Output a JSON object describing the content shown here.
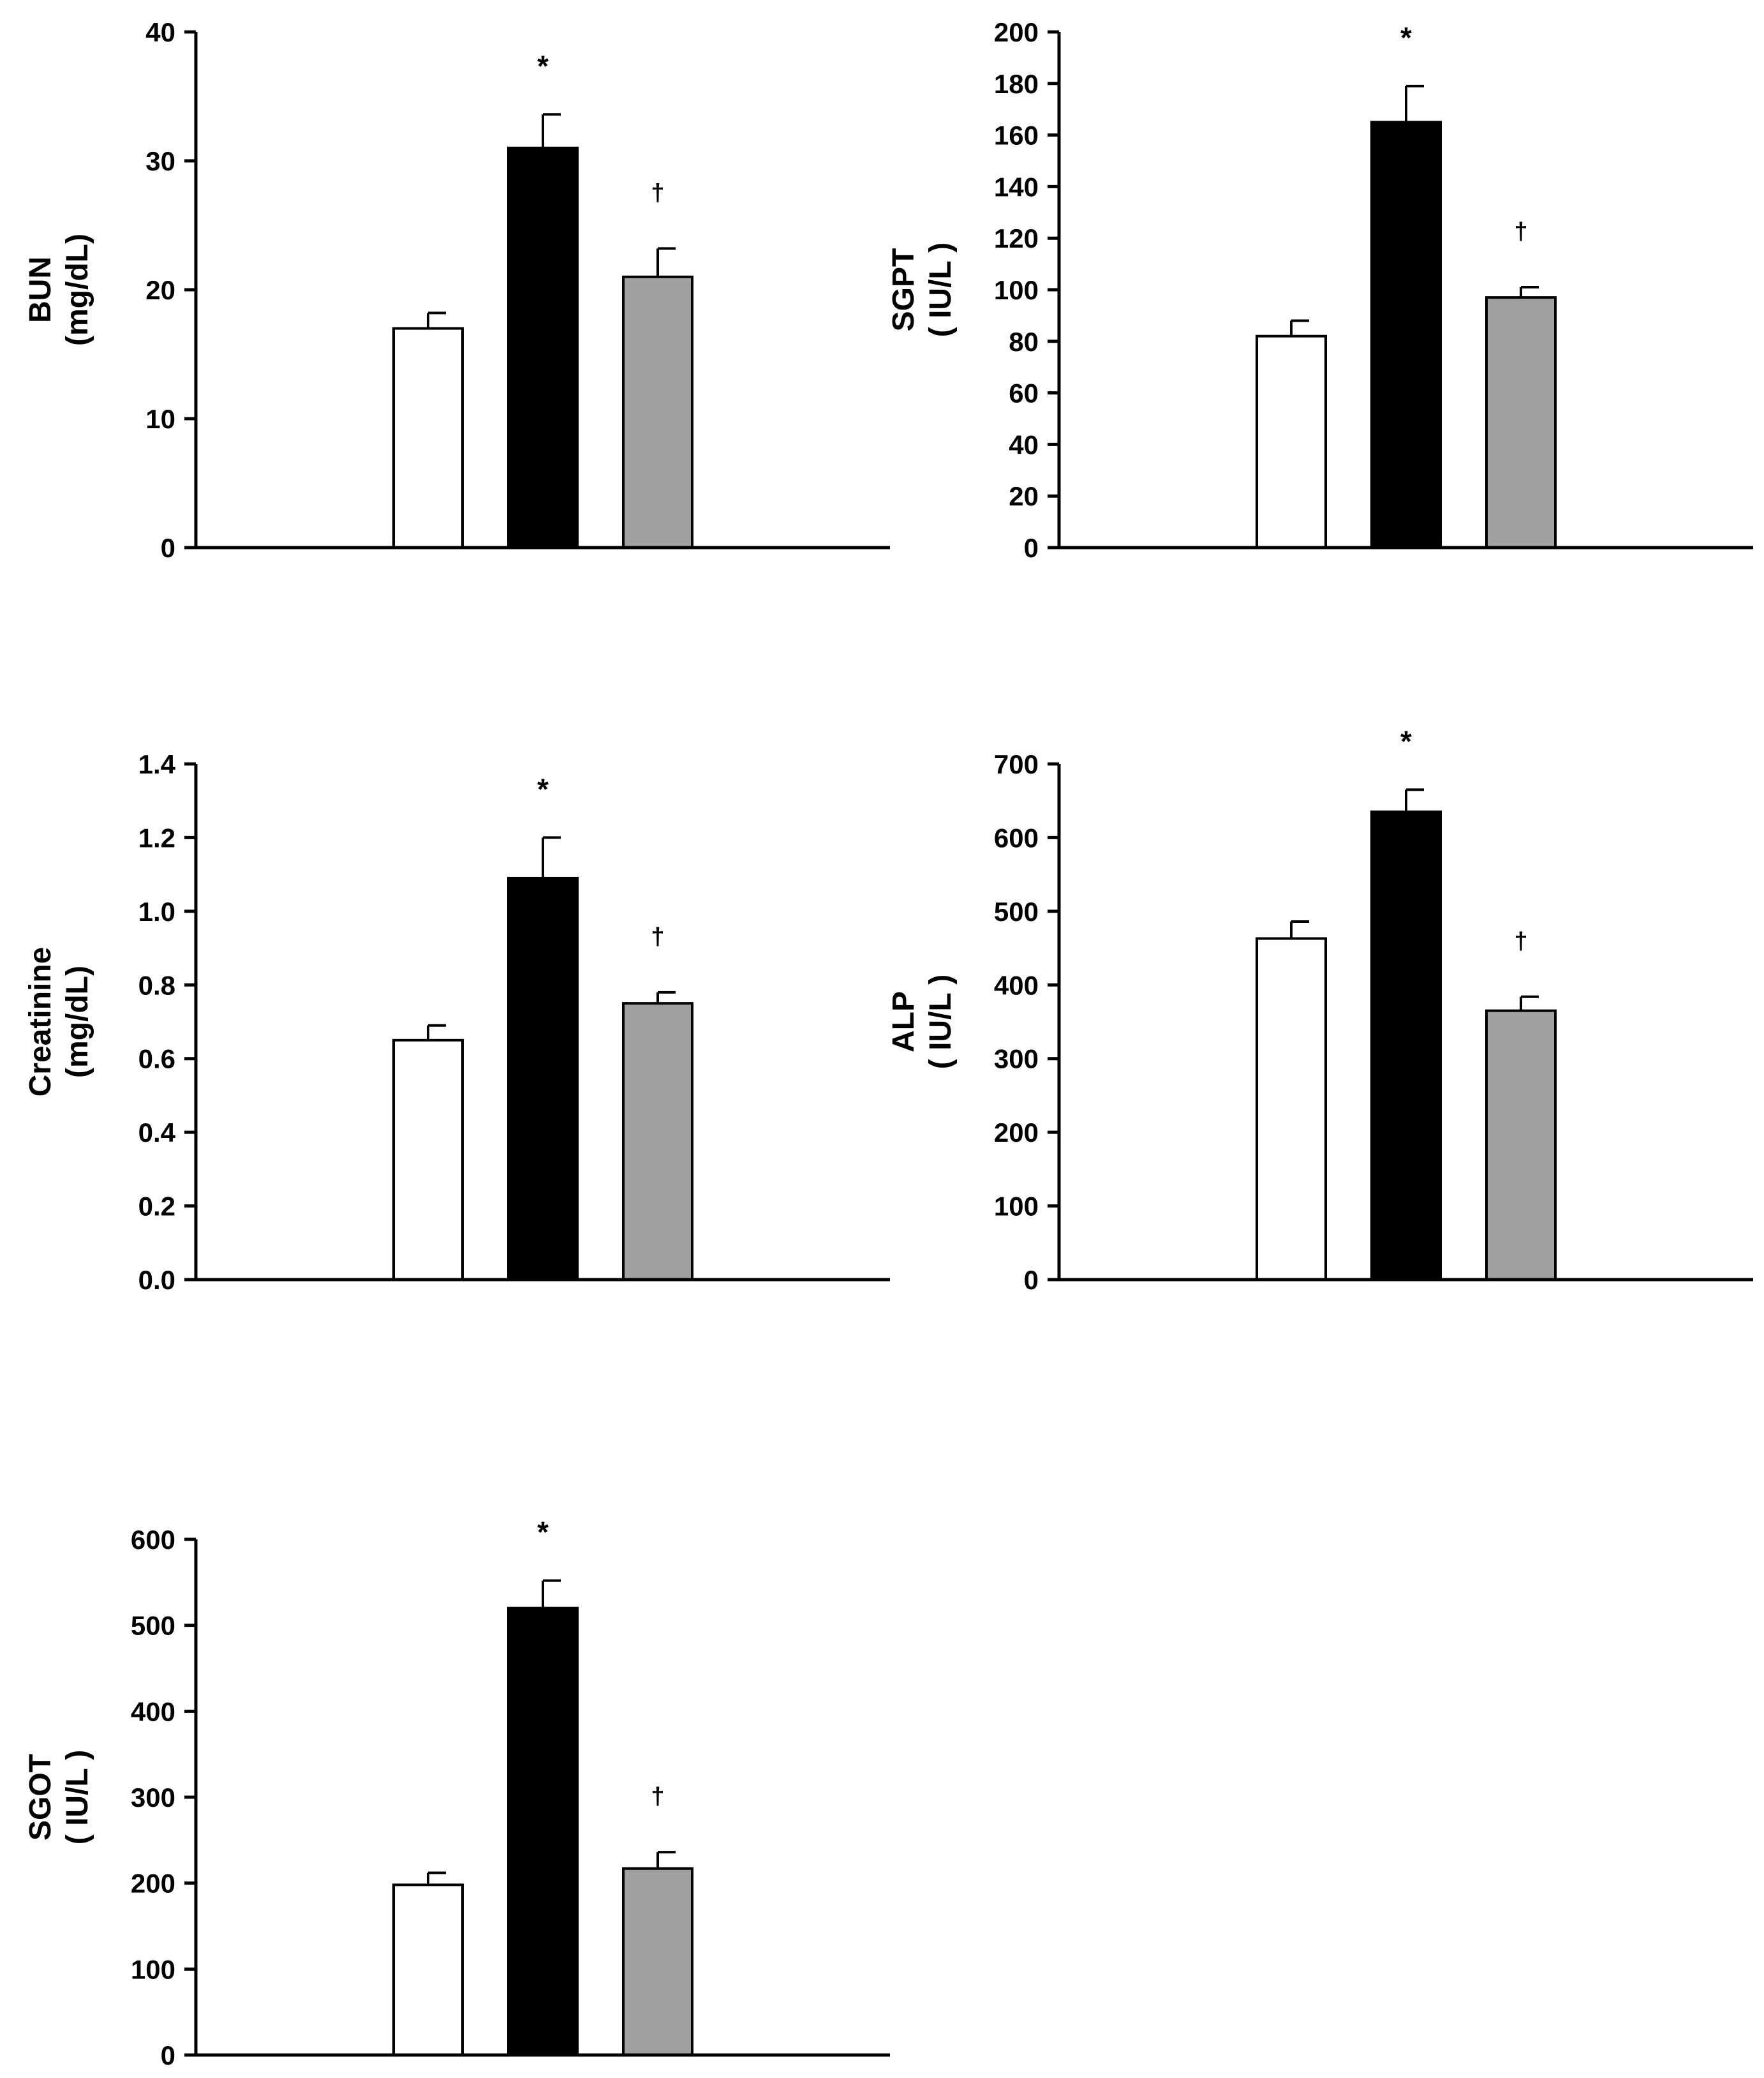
{
  "chart_data": [
    {
      "id": "bun",
      "type": "bar",
      "ylabel": "BUN",
      "ylabel_unit": "(mg/dL)",
      "ylim": [
        0,
        40
      ],
      "yticks": [
        0,
        10,
        20,
        30,
        40
      ],
      "ytick_labels": [
        "0",
        "10",
        "20",
        "30",
        "40"
      ],
      "bars": [
        {
          "value": 17,
          "error": 1.2,
          "color": "#ffffff",
          "annotation": ""
        },
        {
          "value": 31,
          "error": 2.6,
          "color": "#000000",
          "annotation": "*"
        },
        {
          "value": 21,
          "error": 2.2,
          "color": "#a0a0a0",
          "annotation": "†"
        }
      ]
    },
    {
      "id": "sgpt",
      "type": "bar",
      "ylabel": "SGPT",
      "ylabel_unit": "( IU/L )",
      "ylim": [
        0,
        200
      ],
      "yticks": [
        0,
        20,
        40,
        60,
        80,
        100,
        120,
        140,
        160,
        180,
        200
      ],
      "ytick_labels": [
        "0",
        "20",
        "40",
        "60",
        "80",
        "100",
        "120",
        "140",
        "160",
        "180",
        "200"
      ],
      "bars": [
        {
          "value": 82,
          "error": 6,
          "color": "#ffffff",
          "annotation": ""
        },
        {
          "value": 165,
          "error": 14,
          "color": "#000000",
          "annotation": "*"
        },
        {
          "value": 97,
          "error": 4,
          "color": "#a0a0a0",
          "annotation": "†"
        }
      ]
    },
    {
      "id": "creatinine",
      "type": "bar",
      "ylabel": "Creatinine",
      "ylabel_unit": "(mg/dL)",
      "ylim": [
        0,
        1.4
      ],
      "yticks": [
        0,
        0.2,
        0.4,
        0.6,
        0.8,
        1.0,
        1.2,
        1.4
      ],
      "ytick_labels": [
        "0.0",
        "0.2",
        "0.4",
        "0.6",
        "0.8",
        "1.0",
        "1.2",
        "1.4"
      ],
      "bars": [
        {
          "value": 0.65,
          "error": 0.04,
          "color": "#ffffff",
          "annotation": ""
        },
        {
          "value": 1.09,
          "error": 0.11,
          "color": "#000000",
          "annotation": "*"
        },
        {
          "value": 0.75,
          "error": 0.03,
          "color": "#a0a0a0",
          "annotation": "†"
        }
      ]
    },
    {
      "id": "alp",
      "type": "bar",
      "ylabel": "ALP",
      "ylabel_unit": "( IU/L )",
      "ylim": [
        0,
        700
      ],
      "yticks": [
        0,
        100,
        200,
        300,
        400,
        500,
        600,
        700
      ],
      "ytick_labels": [
        "0",
        "100",
        "200",
        "300",
        "400",
        "500",
        "600",
        "700"
      ],
      "bars": [
        {
          "value": 463,
          "error": 23,
          "color": "#ffffff",
          "annotation": ""
        },
        {
          "value": 635,
          "error": 30,
          "color": "#000000",
          "annotation": "*"
        },
        {
          "value": 365,
          "error": 19,
          "color": "#a0a0a0",
          "annotation": "†"
        }
      ]
    },
    {
      "id": "sgot",
      "type": "bar",
      "ylabel": "SGOT",
      "ylabel_unit": "( IU/L )",
      "ylim": [
        0,
        600
      ],
      "yticks": [
        0,
        100,
        200,
        300,
        400,
        500,
        600
      ],
      "ytick_labels": [
        "0",
        "100",
        "200",
        "300",
        "400",
        "500",
        "600"
      ],
      "bars": [
        {
          "value": 198,
          "error": 14,
          "color": "#ffffff",
          "annotation": ""
        },
        {
          "value": 520,
          "error": 32,
          "color": "#000000",
          "annotation": "*"
        },
        {
          "value": 217,
          "error": 19,
          "color": "#a0a0a0",
          "annotation": "†"
        }
      ]
    }
  ]
}
